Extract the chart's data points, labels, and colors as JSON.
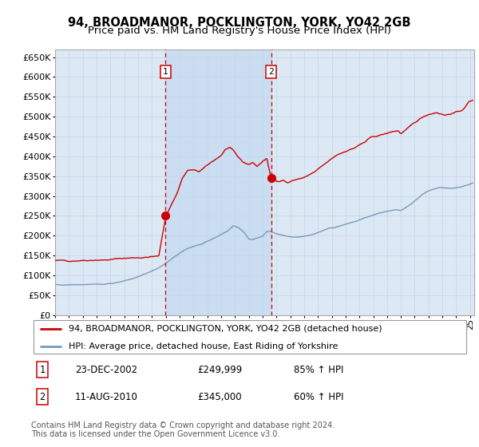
{
  "title": "94, BROADMANOR, POCKLINGTON, YORK, YO42 2GB",
  "subtitle": "Price paid vs. HM Land Registry's House Price Index (HPI)",
  "ylim": [
    0,
    670000
  ],
  "yticks": [
    0,
    50000,
    100000,
    150000,
    200000,
    250000,
    300000,
    350000,
    400000,
    450000,
    500000,
    550000,
    600000,
    650000
  ],
  "xlim_start": 1995.0,
  "xlim_end": 2025.3,
  "background_color": "#ffffff",
  "plot_bg_color": "#dce9f5",
  "grid_color": "#c8d8e8",
  "shaded_region_color": "#c5d9ef",
  "red_line_color": "#cc0000",
  "blue_line_color": "#7799bb",
  "dashed_line_color": "#cc0000",
  "sale1_x": 2002.98,
  "sale1_y": 249999,
  "sale1_label": "1",
  "sale2_x": 2010.62,
  "sale2_y": 345000,
  "sale2_label": "2",
  "legend_red_label": "94, BROADMANOR, POCKLINGTON, YORK, YO42 2GB (detached house)",
  "legend_blue_label": "HPI: Average price, detached house, East Riding of Yorkshire",
  "annotation1_date": "23-DEC-2002",
  "annotation1_price": "£249,999",
  "annotation1_hpi": "85% ↑ HPI",
  "annotation2_date": "11-AUG-2010",
  "annotation2_price": "£345,000",
  "annotation2_hpi": "60% ↑ HPI",
  "footnote": "Contains HM Land Registry data © Crown copyright and database right 2024.\nThis data is licensed under the Open Government Licence v3.0.",
  "title_fontsize": 10.5,
  "subtitle_fontsize": 9.5,
  "tick_fontsize": 8,
  "legend_fontsize": 8,
  "annotation_fontsize": 8.5,
  "footnote_fontsize": 7
}
